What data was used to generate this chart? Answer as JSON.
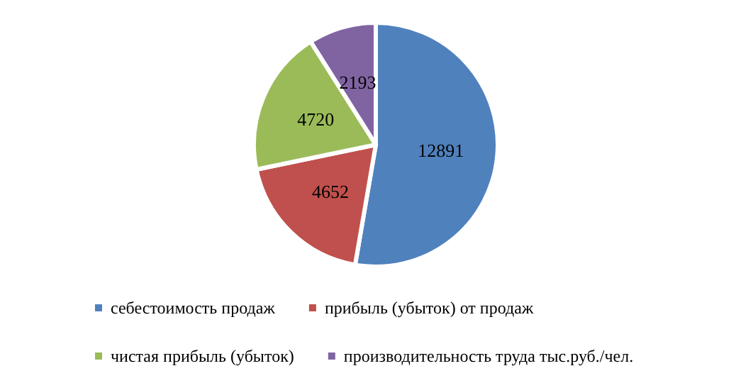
{
  "chart_data": {
    "type": "pie",
    "categories": [
      "себестоимость продаж",
      "прибыль (убыток) от продаж",
      "чистая прибыль (убыток)",
      "производительность труда тыс.руб./чел."
    ],
    "values": [
      12891,
      4652,
      4720,
      2193
    ],
    "colors": [
      "#4f81bd",
      "#c0504d",
      "#9bbb59",
      "#8064a2"
    ],
    "data_labels": true,
    "legend": "bottom"
  }
}
